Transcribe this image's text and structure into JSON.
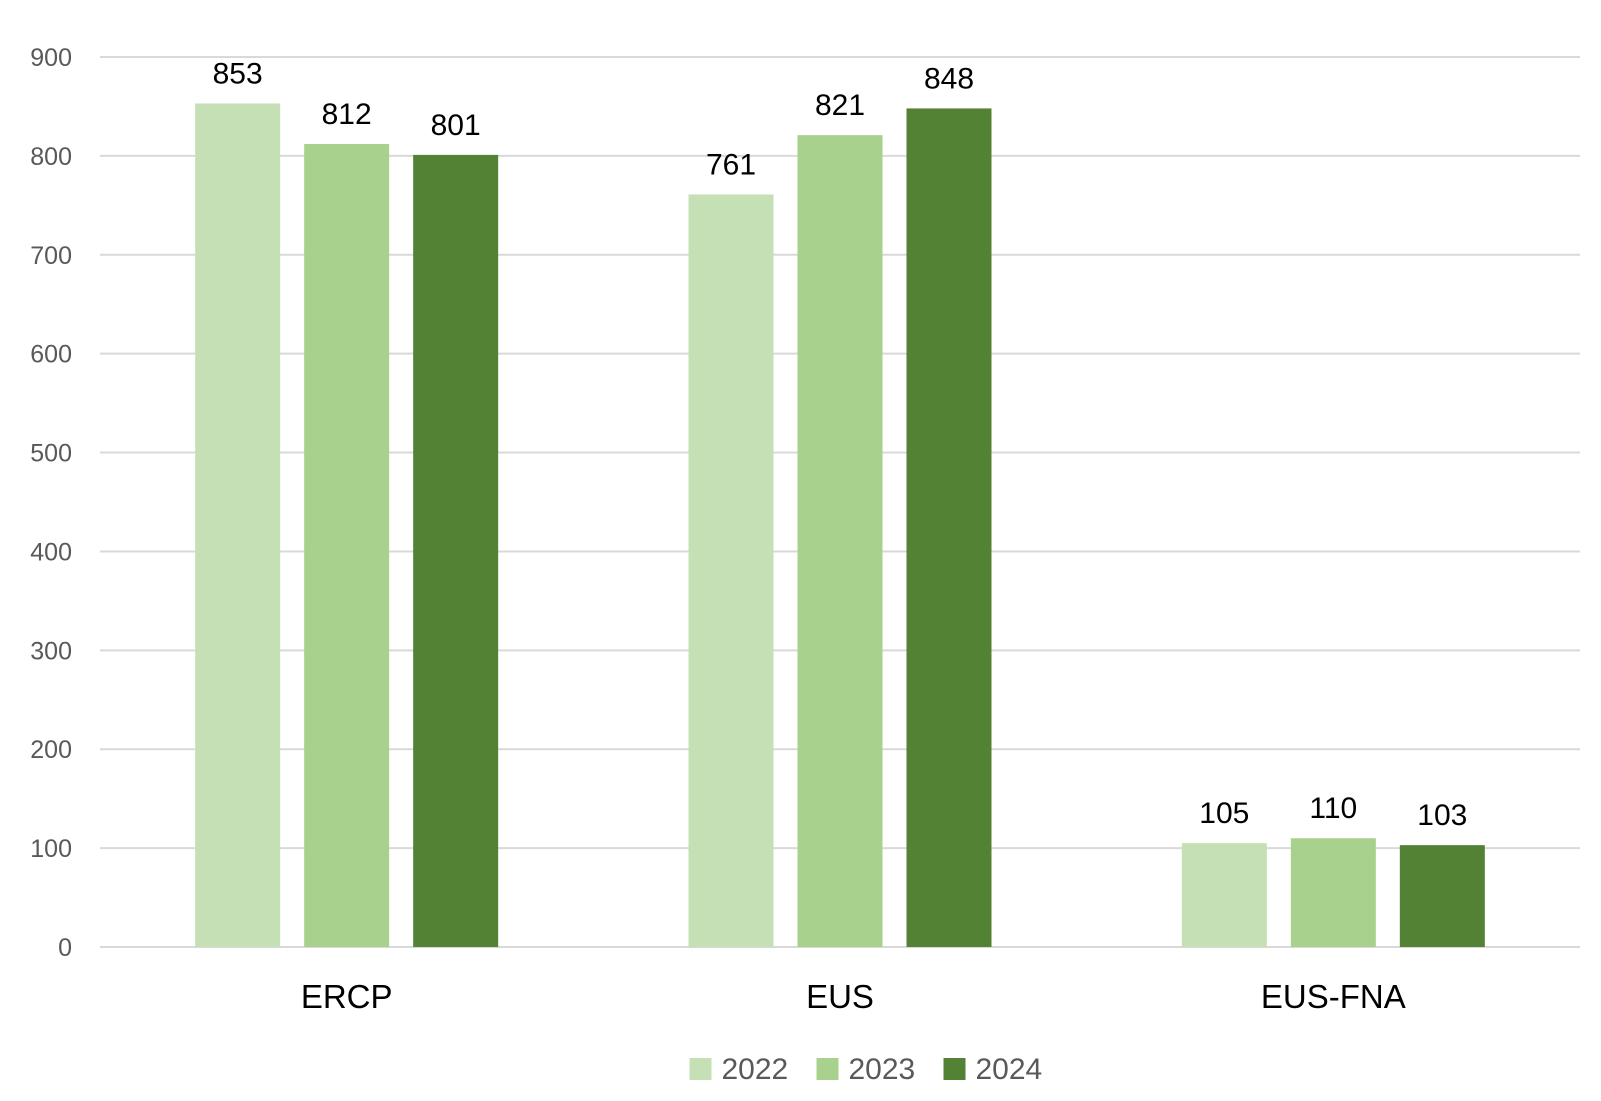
{
  "chart_data": {
    "type": "bar",
    "categories": [
      "ERCP",
      "EUS",
      "EUS-FNA"
    ],
    "series": [
      {
        "name": "2022",
        "values": [
          853,
          761,
          105
        ],
        "color": "#c5e0b4"
      },
      {
        "name": "2023",
        "values": [
          812,
          821,
          110
        ],
        "color": "#a9d18e"
      },
      {
        "name": "2024",
        "values": [
          801,
          848,
          103
        ],
        "color": "#548235"
      }
    ],
    "title": "",
    "xlabel": "",
    "ylabel": "",
    "ylim": [
      0,
      900
    ],
    "yticks": [
      0,
      100,
      200,
      300,
      400,
      500,
      600,
      700,
      800,
      900
    ],
    "grid": true,
    "legend": "bottom-center",
    "data_labels": true
  }
}
